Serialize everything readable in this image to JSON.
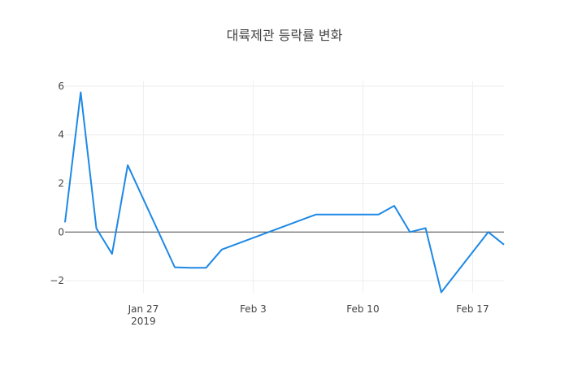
{
  "chart_data": {
    "type": "line",
    "title": "대륙제관 등락률 변화",
    "xlabel": "",
    "ylabel": "",
    "x_range": [
      "2019-01-22",
      "2019-02-19"
    ],
    "ylim": [
      -2.5,
      6.2
    ],
    "grid": true,
    "legend": "none",
    "zero_line": true,
    "line_color": "#1e88e5",
    "x_ticks": [
      {
        "date": "2019-01-27",
        "label": "Jan 27",
        "sublabel": "2019"
      },
      {
        "date": "2019-02-03",
        "label": "Feb 3",
        "sublabel": ""
      },
      {
        "date": "2019-02-10",
        "label": "Feb 10",
        "sublabel": ""
      },
      {
        "date": "2019-02-17",
        "label": "Feb 17",
        "sublabel": ""
      }
    ],
    "y_ticks": [
      {
        "value": 6,
        "label": "6"
      },
      {
        "value": 4,
        "label": "4"
      },
      {
        "value": 2,
        "label": "2"
      },
      {
        "value": 0,
        "label": "0"
      },
      {
        "value": -2,
        "label": "−2"
      }
    ],
    "series": [
      {
        "x": [
          "2019-01-22",
          "2019-01-23",
          "2019-01-24",
          "2019-01-25",
          "2019-01-26",
          "2019-01-29",
          "2019-01-30",
          "2019-01-31",
          "2019-02-01",
          "2019-02-07",
          "2019-02-08",
          "2019-02-11",
          "2019-02-12",
          "2019-02-13",
          "2019-02-14",
          "2019-02-15",
          "2019-02-18",
          "2019-02-19"
        ],
        "y": [
          0.4,
          5.75,
          0.15,
          -0.9,
          2.75,
          -1.45,
          -1.47,
          -1.47,
          -0.72,
          0.72,
          0.72,
          0.72,
          1.08,
          0.0,
          0.16,
          -2.48,
          0.0,
          -0.52
        ]
      }
    ]
  }
}
